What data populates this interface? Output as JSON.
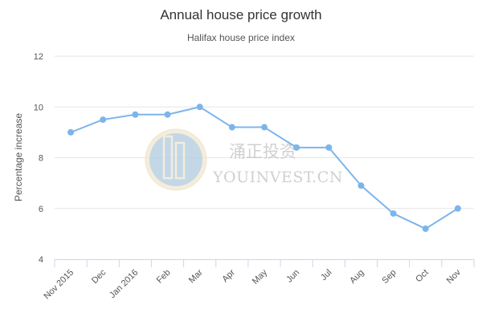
{
  "chart_data": {
    "type": "line",
    "title": "Annual house price growth",
    "subtitle": "Halifax house price index",
    "ylabel": "Percentage increase",
    "xlabel": "",
    "categories": [
      "Nov 2015",
      "Dec",
      "Jan 2016",
      "Feb",
      "Mar",
      "Apr",
      "May",
      "Jun",
      "Jul",
      "Aug",
      "Sep",
      "Oct",
      "Nov"
    ],
    "values": [
      9.0,
      9.5,
      9.7,
      9.7,
      10.0,
      9.2,
      9.2,
      8.4,
      8.4,
      6.9,
      5.8,
      5.2,
      6.0
    ],
    "ylim": [
      4,
      12
    ],
    "yticks": [
      "4",
      "6",
      "8",
      "10",
      "12"
    ],
    "grid": true,
    "legend": "none",
    "line_color": "#7cb5ec"
  },
  "watermark": {
    "text_cn": "涌正投资",
    "text_en": "YOUINVEST.CN"
  }
}
